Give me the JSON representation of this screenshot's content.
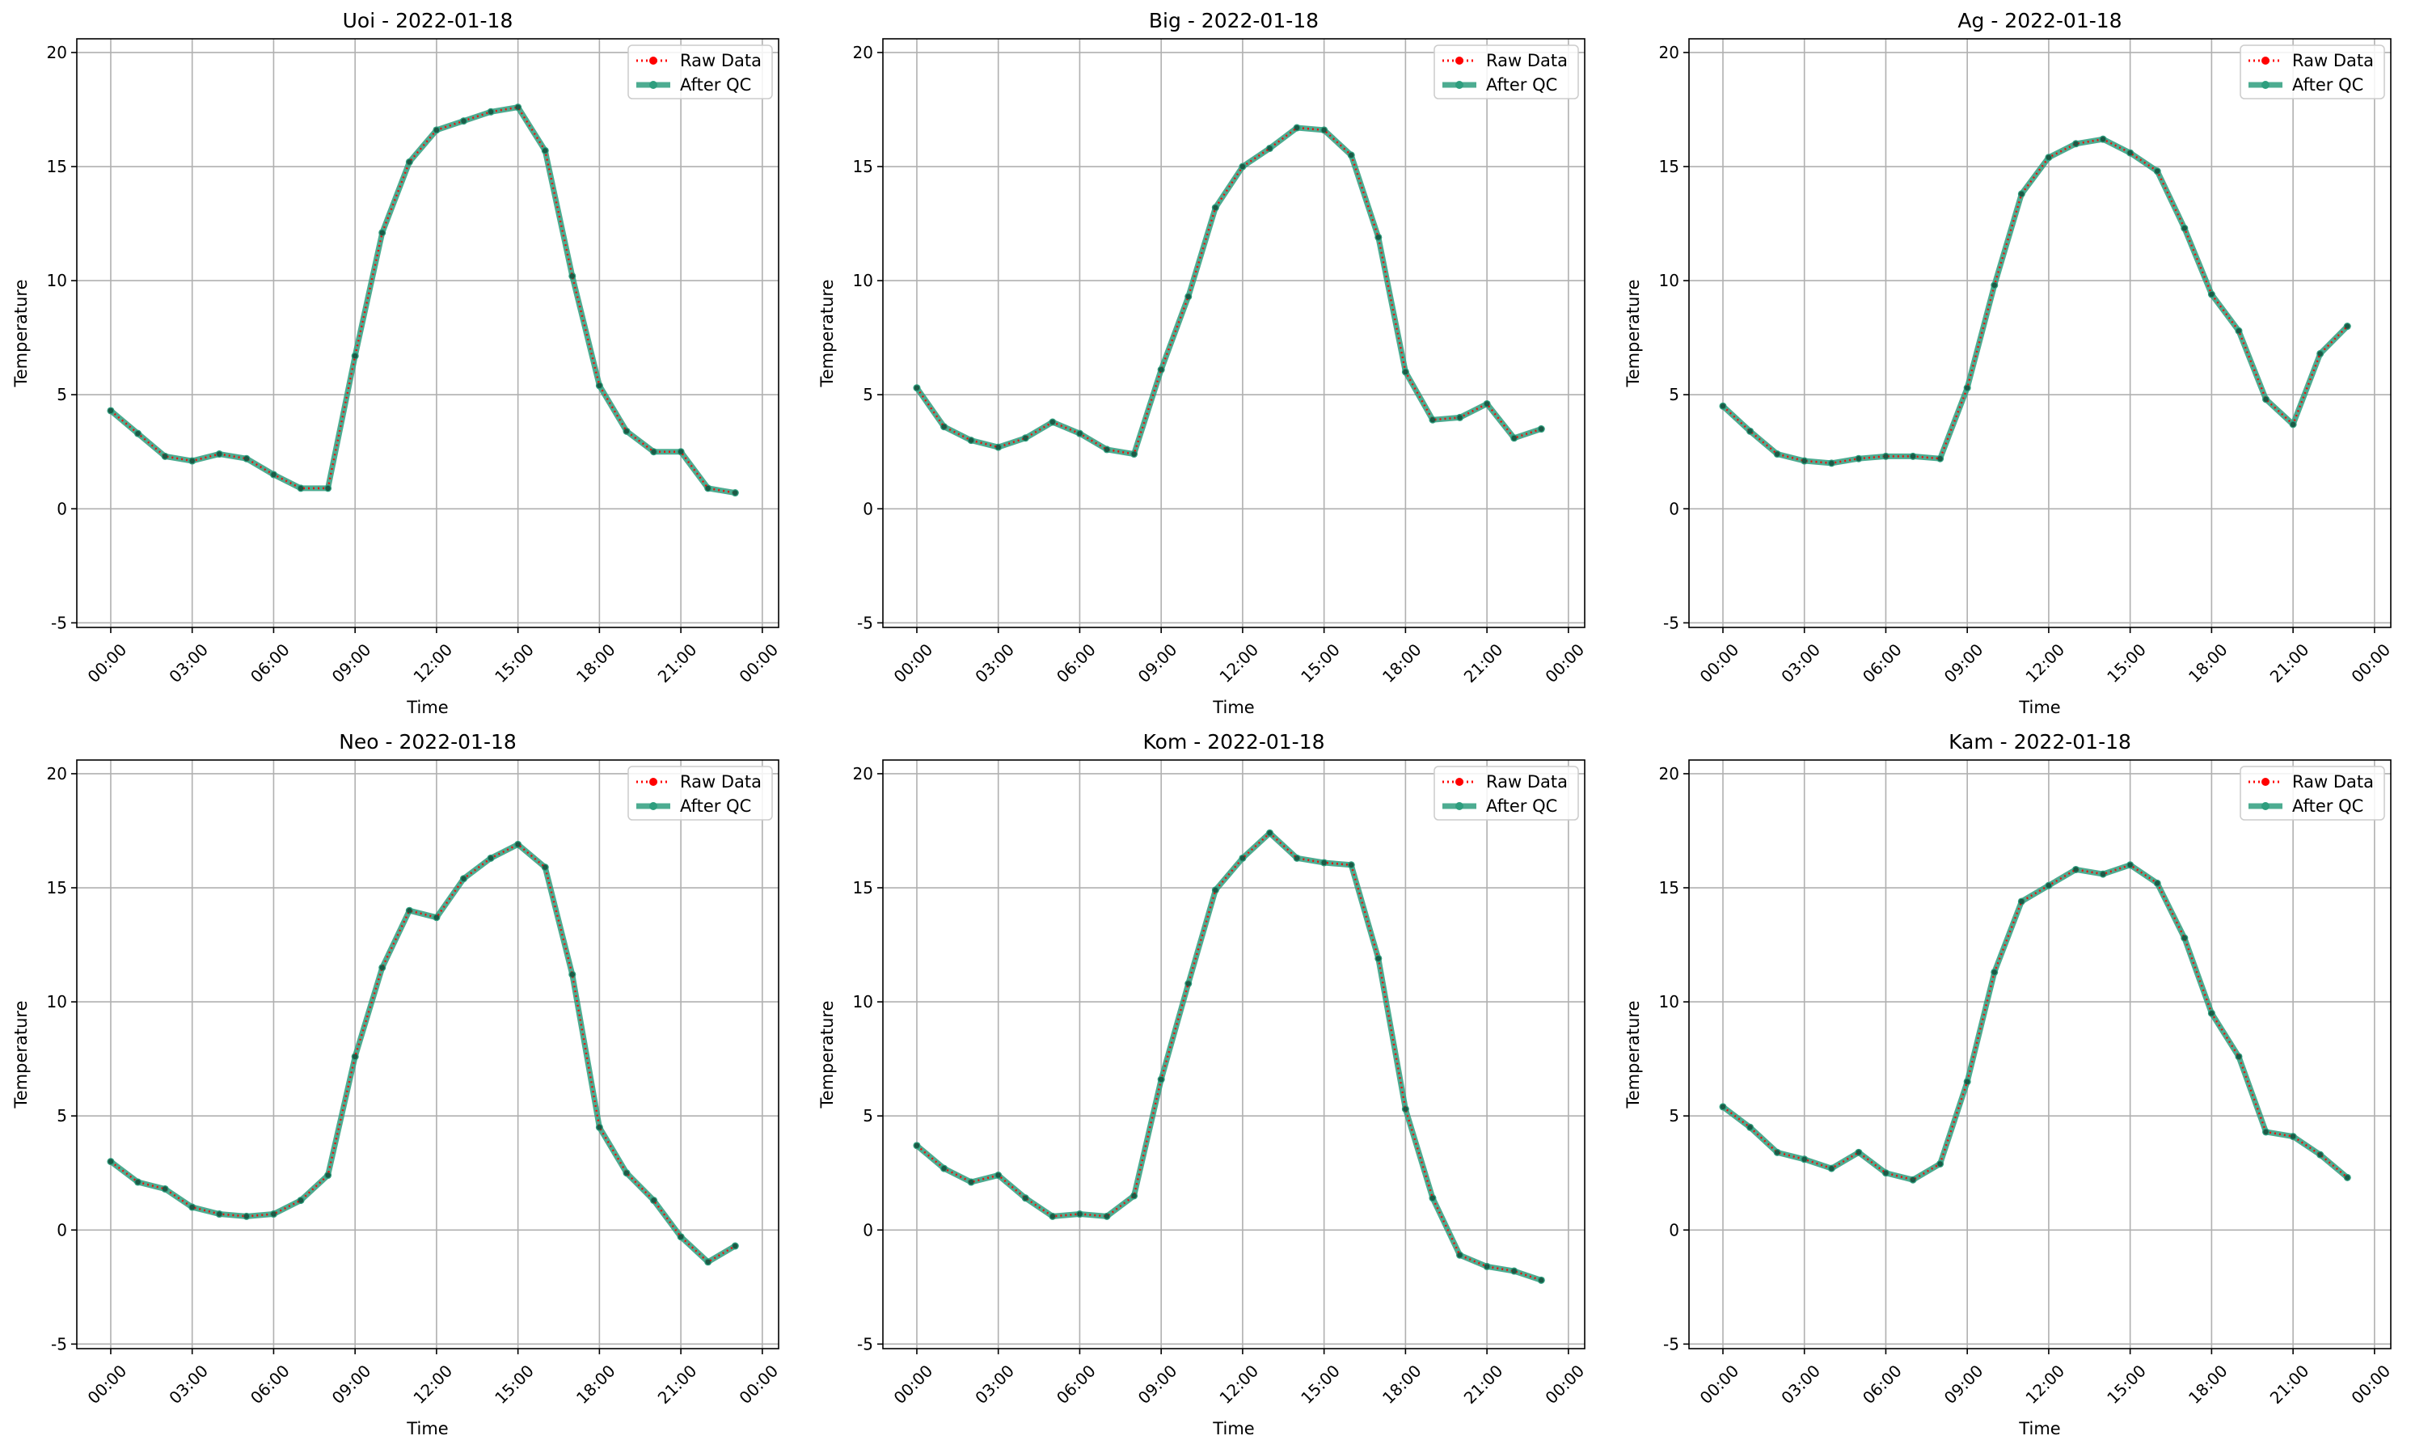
{
  "chart_data": [
    {
      "type": "line",
      "title": "Uoi - 2022-01-18",
      "xlabel": "Time",
      "ylabel": "Temperature",
      "ylim": [
        -5.2,
        20.6
      ],
      "yticks": [
        -5,
        0,
        5,
        10,
        15,
        20
      ],
      "xticks": [
        "00:00",
        "03:00",
        "06:00",
        "09:00",
        "12:00",
        "15:00",
        "18:00",
        "21:00",
        "00:00"
      ],
      "x_hours": [
        0,
        1,
        2,
        3,
        4,
        5,
        6,
        7,
        8,
        9,
        10,
        11,
        12,
        13,
        14,
        15,
        16,
        17,
        18,
        19,
        20,
        21,
        22,
        23
      ],
      "grid": true,
      "legend": "top-right",
      "series": [
        {
          "name": "Raw Data",
          "color": "#ff0000",
          "style": "dotted",
          "values": [
            4.3,
            3.3,
            2.3,
            2.1,
            2.4,
            2.2,
            1.5,
            0.9,
            0.9,
            6.7,
            12.1,
            15.2,
            16.6,
            17.0,
            17.4,
            17.6,
            15.7,
            10.2,
            5.4,
            3.4,
            2.5,
            2.5,
            0.9,
            0.7
          ]
        },
        {
          "name": "After QC",
          "color": "#2e9e7e",
          "style": "solid",
          "values": [
            4.3,
            3.3,
            2.3,
            2.1,
            2.4,
            2.2,
            1.5,
            0.9,
            0.9,
            6.7,
            12.1,
            15.2,
            16.6,
            17.0,
            17.4,
            17.6,
            15.7,
            10.2,
            5.4,
            3.4,
            2.5,
            2.5,
            0.9,
            0.7
          ]
        }
      ]
    },
    {
      "type": "line",
      "title": "Big - 2022-01-18",
      "xlabel": "Time",
      "ylabel": "Temperature",
      "ylim": [
        -5.2,
        20.6
      ],
      "yticks": [
        -5,
        0,
        5,
        10,
        15,
        20
      ],
      "xticks": [
        "00:00",
        "03:00",
        "06:00",
        "09:00",
        "12:00",
        "15:00",
        "18:00",
        "21:00",
        "00:00"
      ],
      "x_hours": [
        0,
        1,
        2,
        3,
        4,
        5,
        6,
        7,
        8,
        9,
        10,
        11,
        12,
        13,
        14,
        15,
        16,
        17,
        18,
        19,
        20,
        21,
        22,
        23
      ],
      "grid": true,
      "legend": "top-right",
      "series": [
        {
          "name": "Raw Data",
          "color": "#ff0000",
          "style": "dotted",
          "values": [
            5.3,
            3.6,
            3.0,
            2.7,
            3.1,
            3.8,
            3.3,
            2.6,
            2.4,
            6.1,
            9.3,
            13.2,
            15.0,
            15.8,
            16.7,
            16.6,
            15.5,
            11.9,
            6.0,
            3.9,
            4.0,
            4.6,
            3.1,
            3.5
          ]
        },
        {
          "name": "After QC",
          "color": "#2e9e7e",
          "style": "solid",
          "values": [
            5.3,
            3.6,
            3.0,
            2.7,
            3.1,
            3.8,
            3.3,
            2.6,
            2.4,
            6.1,
            9.3,
            13.2,
            15.0,
            15.8,
            16.7,
            16.6,
            15.5,
            11.9,
            6.0,
            3.9,
            4.0,
            4.6,
            3.1,
            3.5
          ]
        }
      ]
    },
    {
      "type": "line",
      "title": "Ag - 2022-01-18",
      "xlabel": "Time",
      "ylabel": "Temperature",
      "ylim": [
        -5.2,
        20.6
      ],
      "yticks": [
        -5,
        0,
        5,
        10,
        15,
        20
      ],
      "xticks": [
        "00:00",
        "03:00",
        "06:00",
        "09:00",
        "12:00",
        "15:00",
        "18:00",
        "21:00",
        "00:00"
      ],
      "x_hours": [
        0,
        1,
        2,
        3,
        4,
        5,
        6,
        7,
        8,
        9,
        10,
        11,
        12,
        13,
        14,
        15,
        16,
        17,
        18,
        19,
        20,
        21,
        22,
        23
      ],
      "grid": true,
      "legend": "top-right",
      "series": [
        {
          "name": "Raw Data",
          "color": "#ff0000",
          "style": "dotted",
          "values": [
            4.5,
            3.4,
            2.4,
            2.1,
            2.0,
            2.2,
            2.3,
            2.3,
            2.2,
            5.3,
            9.8,
            13.8,
            15.4,
            16.0,
            16.2,
            15.6,
            14.8,
            12.3,
            9.4,
            7.8,
            4.8,
            3.7,
            6.8,
            8.0
          ]
        },
        {
          "name": "After QC",
          "color": "#2e9e7e",
          "style": "solid",
          "values": [
            4.5,
            3.4,
            2.4,
            2.1,
            2.0,
            2.2,
            2.3,
            2.3,
            2.2,
            5.3,
            9.8,
            13.8,
            15.4,
            16.0,
            16.2,
            15.6,
            14.8,
            12.3,
            9.4,
            7.8,
            4.8,
            3.7,
            6.8,
            8.0
          ]
        }
      ]
    },
    {
      "type": "line",
      "title": "Neo - 2022-01-18",
      "xlabel": "Time",
      "ylabel": "Temperature",
      "ylim": [
        -5.2,
        20.6
      ],
      "yticks": [
        -5,
        0,
        5,
        10,
        15,
        20
      ],
      "xticks": [
        "00:00",
        "03:00",
        "06:00",
        "09:00",
        "12:00",
        "15:00",
        "18:00",
        "21:00",
        "00:00"
      ],
      "x_hours": [
        0,
        1,
        2,
        3,
        4,
        5,
        6,
        7,
        8,
        9,
        10,
        11,
        12,
        13,
        14,
        15,
        16,
        17,
        18,
        19,
        20,
        21,
        22,
        23
      ],
      "grid": true,
      "legend": "top-right",
      "series": [
        {
          "name": "Raw Data",
          "color": "#ff0000",
          "style": "dotted",
          "values": [
            3.0,
            2.1,
            1.8,
            1.0,
            0.7,
            0.6,
            0.7,
            1.3,
            2.4,
            7.6,
            11.5,
            14.0,
            13.7,
            15.4,
            16.3,
            16.9,
            15.9,
            11.2,
            4.5,
            2.5,
            1.3,
            -0.3,
            -1.4,
            -0.7
          ]
        },
        {
          "name": "After QC",
          "color": "#2e9e7e",
          "style": "solid",
          "values": [
            3.0,
            2.1,
            1.8,
            1.0,
            0.7,
            0.6,
            0.7,
            1.3,
            2.4,
            7.6,
            11.5,
            14.0,
            13.7,
            15.4,
            16.3,
            16.9,
            15.9,
            11.2,
            4.5,
            2.5,
            1.3,
            -0.3,
            -1.4,
            -0.7
          ]
        }
      ]
    },
    {
      "type": "line",
      "title": "Kom - 2022-01-18",
      "xlabel": "Time",
      "ylabel": "Temperature",
      "ylim": [
        -5.2,
        20.6
      ],
      "yticks": [
        -5,
        0,
        5,
        10,
        15,
        20
      ],
      "xticks": [
        "00:00",
        "03:00",
        "06:00",
        "09:00",
        "12:00",
        "15:00",
        "18:00",
        "21:00",
        "00:00"
      ],
      "x_hours": [
        0,
        1,
        2,
        3,
        4,
        5,
        6,
        7,
        8,
        9,
        10,
        11,
        12,
        13,
        14,
        15,
        16,
        17,
        18,
        19,
        20,
        21,
        22,
        23
      ],
      "grid": true,
      "legend": "top-right",
      "series": [
        {
          "name": "Raw Data",
          "color": "#ff0000",
          "style": "dotted",
          "values": [
            3.7,
            2.7,
            2.1,
            2.4,
            1.4,
            0.6,
            0.7,
            0.6,
            1.5,
            6.6,
            10.8,
            14.9,
            16.3,
            17.4,
            16.3,
            16.1,
            16.0,
            11.9,
            5.3,
            1.4,
            -1.1,
            -1.6,
            -1.8,
            -2.2
          ]
        },
        {
          "name": "After QC",
          "color": "#2e9e7e",
          "style": "solid",
          "values": [
            3.7,
            2.7,
            2.1,
            2.4,
            1.4,
            0.6,
            0.7,
            0.6,
            1.5,
            6.6,
            10.8,
            14.9,
            16.3,
            17.4,
            16.3,
            16.1,
            16.0,
            11.9,
            5.3,
            1.4,
            -1.1,
            -1.6,
            -1.8,
            -2.2
          ]
        }
      ]
    },
    {
      "type": "line",
      "title": "Kam - 2022-01-18",
      "xlabel": "Time",
      "ylabel": "Temperature",
      "ylim": [
        -5.2,
        20.6
      ],
      "yticks": [
        -5,
        0,
        5,
        10,
        15,
        20
      ],
      "xticks": [
        "00:00",
        "03:00",
        "06:00",
        "09:00",
        "12:00",
        "15:00",
        "18:00",
        "21:00",
        "00:00"
      ],
      "x_hours": [
        0,
        1,
        2,
        3,
        4,
        5,
        6,
        7,
        8,
        9,
        10,
        11,
        12,
        13,
        14,
        15,
        16,
        17,
        18,
        19,
        20,
        21,
        22,
        23
      ],
      "grid": true,
      "legend": "top-right",
      "series": [
        {
          "name": "Raw Data",
          "color": "#ff0000",
          "style": "dotted",
          "values": [
            5.4,
            4.5,
            3.4,
            3.1,
            2.7,
            3.4,
            2.5,
            2.2,
            2.9,
            6.5,
            11.3,
            14.4,
            15.1,
            15.8,
            15.6,
            16.0,
            15.2,
            12.8,
            9.5,
            7.6,
            4.3,
            4.1,
            3.3,
            2.3
          ]
        },
        {
          "name": "After QC",
          "color": "#2e9e7e",
          "style": "solid",
          "values": [
            5.4,
            4.5,
            3.4,
            3.1,
            2.7,
            3.4,
            2.5,
            2.2,
            2.9,
            6.5,
            11.3,
            14.4,
            15.1,
            15.8,
            15.6,
            16.0,
            15.2,
            12.8,
            9.5,
            7.6,
            4.3,
            4.1,
            3.3,
            2.3
          ]
        }
      ]
    }
  ]
}
